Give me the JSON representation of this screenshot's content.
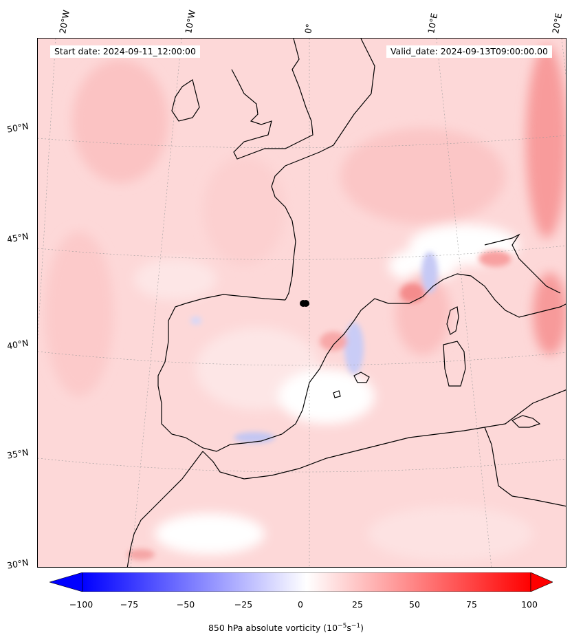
{
  "map": {
    "start_date": "Start date: 2024-09-11_12:00:00",
    "valid_date": "Valid_date: 2024-09-13T09:00:00.00",
    "lon_labels": [
      "20°W",
      "10°W",
      "0°",
      "10°E",
      "20°E"
    ],
    "lat_labels": [
      "50°N",
      "45°N",
      "40°N",
      "35°N",
      "30°N"
    ],
    "marker": "location-dot"
  },
  "colorbar": {
    "ticks": [
      "−100",
      "−75",
      "−50",
      "−25",
      "0",
      "25",
      "50",
      "75",
      "100"
    ],
    "label_text": "850 hPa absolute vorticity (10",
    "label_exp1": "−5",
    "label_mid": "s",
    "label_exp2": "−1",
    "label_end": ")",
    "min_color": "#0000ff",
    "zero_color": "#ffffff",
    "max_color": "#ff0000"
  }
}
